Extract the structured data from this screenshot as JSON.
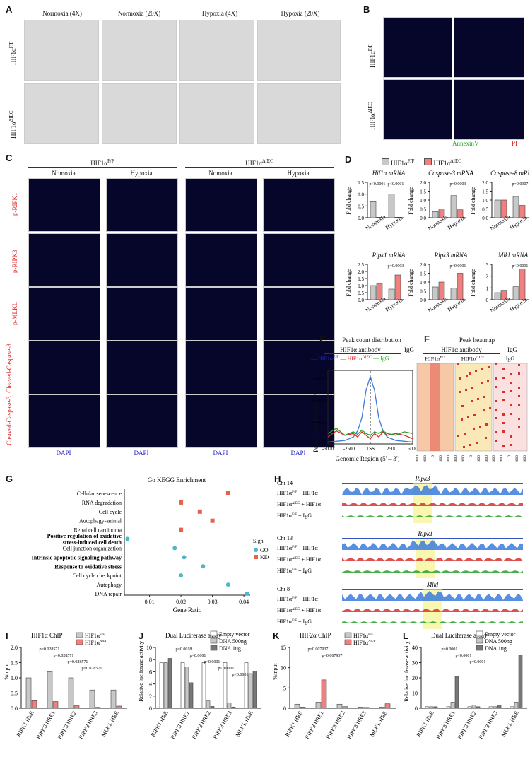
{
  "panels": {
    "A": {
      "label": "A",
      "col_titles": [
        "Normoxia (4X)",
        "Normoxia (20X)",
        "Hypoxia (4X)",
        "Hypoxia (20X)"
      ],
      "row_labels": [
        "HIF1α",
        "HIF1α"
      ],
      "row_sup": [
        "F/F",
        "ΔIEC"
      ]
    },
    "B": {
      "label": "B",
      "row_labels": [
        "HIF1α",
        "HIF1α"
      ],
      "row_sup": [
        "F/F",
        "ΔIEC"
      ],
      "stain_green": "AnnexinV",
      "stain_red": "PI"
    },
    "C": {
      "label": "C",
      "group_titles": [
        "HIF1α",
        "HIF1α"
      ],
      "group_sup": [
        "F/F",
        "ΔIEC"
      ],
      "col_titles": [
        "Nomoxia",
        "Hypoxia",
        "Nomoxia",
        "Hypoxia"
      ],
      "row_labels": [
        "p-RIPK1",
        "p-RIPK3",
        "p-MLKL",
        "Cleaved-Caspase-8",
        "Cleaved-Caspase-3"
      ],
      "footer": "DAPI"
    },
    "D": {
      "label": "D",
      "legend": [
        "HIF1α",
        "HIF1α"
      ],
      "legend_sup": [
        "F/F",
        "ΔIEC"
      ],
      "ylabel": "Fold change",
      "xcats": [
        "Normoxia",
        "Hypoxia"
      ]
    },
    "E": {
      "label": "E",
      "title": "Peak count distribution",
      "sub1": "HIF1α antibody",
      "sub2": "IgG",
      "ylabel": "Peak Count Frequency",
      "xlabel": "Genomic Region (5'→3')",
      "xticks": [
        "-5000",
        "-2500",
        "TSS",
        "2500",
        "5000"
      ],
      "yticks": [
        "0",
        "0.00025",
        "0.00050",
        "0.00075"
      ]
    },
    "F": {
      "label": "F",
      "title": "Peak heatmap",
      "sub1": "HIF1α antibody",
      "sub2": "IgG",
      "col_titles": [
        "HIF1α",
        "HIF1α",
        "IgG"
      ],
      "col_sup": [
        "F/F",
        "ΔIEC",
        ""
      ],
      "xticks": [
        "-4000",
        "-2000",
        "0",
        "2000",
        "4000"
      ]
    },
    "G": {
      "label": "G",
      "title": "Go KEGG Enrichment",
      "xlabel": "Gene Ratio",
      "xticks": [
        "0.01",
        "0.02",
        "0.03",
        "0.04"
      ],
      "legend_title": "Sign",
      "legend_items": [
        "GO",
        "KEGG"
      ]
    },
    "H": {
      "label": "H",
      "chr": [
        "Chr 14",
        "Chr 13",
        "Chr 8"
      ],
      "genes": [
        "Ripk3",
        "Ripk1",
        "Mlkl"
      ],
      "tracks": [
        [
          "HIF1α",
          "+ HIF1α"
        ],
        [
          "HIF1α",
          "+ HIF1α"
        ],
        [
          "HIF1α",
          "+ IgG"
        ]
      ],
      "track_sup": [
        "F/F",
        "ΔIEC",
        "F/F"
      ]
    },
    "I": {
      "label": "I",
      "title": "HIF1α  ChIP",
      "ylabel": "%input",
      "legend": [
        "HIF1α",
        "HIF1α"
      ],
      "legend_sup": [
        "F/F",
        "ΔIEC"
      ],
      "categories": [
        "RIPK1 HRE",
        "RIPK3 HRE1",
        "RIPK3 HRE2",
        "RIPK3 HRE3",
        "MLKL HRE"
      ],
      "pvals": [
        "p=0.028571",
        "p=0.028571",
        "p=0.028571",
        "p=0.028571"
      ]
    },
    "J": {
      "label": "J",
      "title": "Dual Luciferase assay",
      "ylabel": "Relative luciferase activity",
      "legend": [
        "Empty vector",
        "DNA 500ng",
        "DNA 1ug"
      ],
      "categories": [
        "RIPK1 HRE",
        "RIPK3 HRE1",
        "RIPK3 HRE2",
        "RIPK3 HRE3",
        "MLKL HRE"
      ],
      "pvals": [
        "p=0.0018",
        "p<0.0001",
        "p<0.0001",
        "p<0.0001",
        "p<0.0001"
      ]
    },
    "K": {
      "label": "K",
      "title": "HIF2α  ChIP",
      "ylabel": "%input",
      "legend": [
        "HIF1α",
        "HIF1α"
      ],
      "legend_sup": [
        "F/F",
        "ΔIEC"
      ],
      "categories": [
        "RIPK1 HRE",
        "RIPK3 HRE1",
        "RIPK3 HRE2",
        "RIPK3 HRE3",
        "MLKL HRE"
      ],
      "pvals": [
        "p=0.007937",
        "p=0.007937"
      ]
    },
    "L": {
      "label": "L",
      "title": "Dual Luciferase assay",
      "ylabel": "Relative luciferase activity",
      "legend": [
        "Empty vector",
        "DNA 500ng",
        "DNA 1ug"
      ],
      "categories": [
        "RIPK1 HRE",
        "RIPK3 HRE1",
        "RIPK3 HRE2",
        "RIPK3 HRE3",
        "MLKL HRE"
      ],
      "pvals": [
        "p=0.0001",
        "p<0.0001",
        "p=0.0001"
      ]
    }
  },
  "colors": {
    "ff": "#c8c8c8",
    "dIEC": "#f08080",
    "go": "#4db8c8",
    "kegg": "#e8604c",
    "blue": "#3b7bdc",
    "red": "#d83030",
    "green": "#2aa02a"
  },
  "chart_data": [
    {
      "type": "bar",
      "panel": "D",
      "title": "Hif1α mRNA",
      "categories": [
        "Normoxia",
        "Hypoxia"
      ],
      "series": [
        {
          "name": "HIF1αF/F",
          "values": [
            0.68,
            1.0
          ]
        },
        {
          "name": "HIF1αΔIEC",
          "values": [
            0.02,
            0.02
          ]
        }
      ],
      "yticks": [
        "0.0",
        "0.5",
        "1.0",
        "1.5"
      ],
      "ylim": [
        0,
        1.5
      ],
      "pvals": [
        "p<0.0001",
        "p<0.0001"
      ]
    },
    {
      "type": "bar",
      "panel": "D",
      "title": "Caspase-3 mRNA",
      "categories": [
        "Normoxia",
        "Hypoxia"
      ],
      "series": [
        {
          "name": "HIF1αF/F",
          "values": [
            0.35,
            1.25
          ]
        },
        {
          "name": "HIF1αΔIEC",
          "values": [
            0.5,
            0.45
          ]
        }
      ],
      "yticks": [
        "0.0",
        "0.5",
        "1.0",
        "1.5",
        "2.0"
      ],
      "ylim": [
        0,
        2.0
      ],
      "pvals": [
        "p=0.0003"
      ]
    },
    {
      "type": "bar",
      "panel": "D",
      "title": "Caspase-8 mRNA",
      "categories": [
        "Normoxia",
        "Hypoxia"
      ],
      "series": [
        {
          "name": "HIF1αF/F",
          "values": [
            1.0,
            1.2
          ]
        },
        {
          "name": "HIF1αΔIEC",
          "values": [
            1.0,
            0.7
          ]
        }
      ],
      "yticks": [
        "0.0",
        "0.5",
        "1.0",
        "1.5",
        "2.0"
      ],
      "ylim": [
        0,
        2.0
      ],
      "pvals": [
        "p=0.0307"
      ]
    },
    {
      "type": "bar",
      "panel": "D",
      "title": "Ripk1 mRNA",
      "categories": [
        "Normoxia",
        "Hypoxia"
      ],
      "series": [
        {
          "name": "HIF1αF/F",
          "values": [
            1.0,
            0.75
          ]
        },
        {
          "name": "HIF1αΔIEC",
          "values": [
            1.15,
            1.75
          ]
        }
      ],
      "yticks": [
        "0.0",
        "0.5",
        "1.0",
        "1.5",
        "2.0",
        "2.5"
      ],
      "ylim": [
        0,
        2.5
      ],
      "pvals": [
        "p=0.0003"
      ]
    },
    {
      "type": "bar",
      "panel": "D",
      "title": "Ripk3 mRNA",
      "categories": [
        "Normoxia",
        "Hypoxia"
      ],
      "series": [
        {
          "name": "HIF1αF/F",
          "values": [
            0.72,
            0.65
          ]
        },
        {
          "name": "HIF1αΔIEC",
          "values": [
            1.0,
            1.5
          ]
        }
      ],
      "yticks": [
        "0.0",
        "0.5",
        "1.0",
        "1.5",
        "2.0"
      ],
      "ylim": [
        0,
        2.0
      ],
      "pvals": [
        "p<0.0001"
      ]
    },
    {
      "type": "bar",
      "panel": "D",
      "title": "Mlkl mRNA",
      "categories": [
        "Normoxia",
        "Hypoxia"
      ],
      "series": [
        {
          "name": "HIF1αF/F",
          "values": [
            0.6,
            1.1
          ]
        },
        {
          "name": "HIF1αΔIEC",
          "values": [
            0.8,
            2.6
          ]
        }
      ],
      "yticks": [
        "0",
        "1",
        "2",
        "3"
      ],
      "ylim": [
        0,
        3
      ],
      "pvals": [
        "p<0.0001"
      ]
    },
    {
      "type": "line",
      "panel": "E",
      "x": [
        -5000,
        -4000,
        -3000,
        -2000,
        -1500,
        -1000,
        -500,
        0,
        500,
        1000,
        1500,
        2000,
        3000,
        4000,
        5000
      ],
      "series": [
        {
          "name": "HIF1αF/F",
          "values": [
            2e-05,
            3e-05,
            4e-05,
            8e-05,
            0.00015,
            0.0003,
            0.00062,
            0.00078,
            0.00062,
            0.0003,
            0.00015,
            8e-05,
            4e-05,
            3e-05,
            2e-05
          ]
        },
        {
          "name": "HIF1αΔIEC",
          "values": [
            8e-05,
            0.00015,
            0.0001,
            0.00012,
            8e-05,
            0.00014,
            0.0001,
            6e-05,
            0.00012,
            8e-05,
            0.00014,
            0.0001,
            0.00012,
            0.0001,
            6e-05
          ]
        },
        {
          "name": "IgG",
          "values": [
            0.00012,
            0.00018,
            0.0001,
            0.00014,
            0.00011,
            0.00016,
            0.00012,
            0.0001,
            0.00014,
            0.00012,
            0.00015,
            0.00012,
            0.0001,
            0.00014,
            0.00012
          ]
        }
      ],
      "xlim": [
        -5000,
        5000
      ],
      "ylim": [
        0,
        0.00085
      ]
    },
    {
      "type": "scatter",
      "panel": "G",
      "title": "Go KEGG Enrichment",
      "categories": [
        "Cellular senescence",
        "RNA degradation",
        "Cell cycle",
        "Autophagy-animal",
        "Renal cell carcinoma",
        "Positive regulation of oxidative stress-induced cell death",
        "Cell junction organization",
        "Intrinsic apoptotic signaling pathway",
        "Response to oxidative stress",
        "Cell cycle checkpoint",
        "Autophagy",
        "DNA repair"
      ],
      "bold": [
        false,
        false,
        false,
        false,
        false,
        true,
        false,
        true,
        true,
        false,
        false,
        false
      ],
      "x": [
        0.035,
        0.02,
        0.026,
        0.03,
        0.02,
        0.003,
        0.018,
        0.021,
        0.027,
        0.02,
        0.035,
        0.041
      ],
      "sign": [
        "KEGG",
        "KEGG",
        "KEGG",
        "KEGG",
        "KEGG",
        "GO",
        "GO",
        "GO",
        "GO",
        "GO",
        "GO",
        "GO"
      ],
      "xlim": [
        0.002,
        0.042
      ]
    },
    {
      "type": "bar",
      "panel": "I",
      "categories": [
        "RIPK1 HRE",
        "RIPK3 HRE1",
        "RIPK3 HRE2",
        "RIPK3 HRE3",
        "MLKL HRE"
      ],
      "series": [
        {
          "name": "HIF1αF/F",
          "values": [
            1.0,
            1.2,
            1.0,
            0.6,
            0.6
          ]
        },
        {
          "name": "HIF1αΔIEC",
          "values": [
            0.25,
            0.22,
            0.08,
            0.03,
            0.07
          ]
        }
      ],
      "yticks": [
        "0.0",
        "0.5",
        "1.0",
        "1.5",
        "2.0"
      ],
      "ylim": [
        0,
        2.0
      ]
    },
    {
      "type": "bar",
      "panel": "J",
      "categories": [
        "RIPK1 HRE",
        "RIPK3 HRE1",
        "RIPK3 HRE2",
        "RIPK3 HRE3",
        "MLKL HRE"
      ],
      "series": [
        {
          "name": "Empty vector",
          "values": [
            7.5,
            7.5,
            7.5,
            7.5,
            7.5
          ]
        },
        {
          "name": "DNA 500ng",
          "values": [
            7.5,
            6.8,
            1.2,
            0.9,
            5.7
          ]
        },
        {
          "name": "DNA 1ug",
          "values": [
            8.2,
            4.2,
            0.3,
            0.2,
            6.1
          ]
        }
      ],
      "yticks": [
        "0",
        "2",
        "4",
        "6",
        "8",
        "10"
      ],
      "ylim": [
        0,
        10
      ]
    },
    {
      "type": "bar",
      "panel": "K",
      "categories": [
        "RIPK1 HRE",
        "RIPK3 HRE1",
        "RIPK3 HRE2",
        "RIPK3 HRE3",
        "MLKL HRE"
      ],
      "series": [
        {
          "name": "HIF1αF/F",
          "values": [
            1.0,
            1.5,
            1.0,
            0.3,
            0.3
          ]
        },
        {
          "name": "HIF1αΔIEC",
          "values": [
            0.3,
            7.0,
            0.4,
            0.2,
            1.1
          ]
        }
      ],
      "yticks": [
        "0",
        "5",
        "10",
        "15"
      ],
      "ylim": [
        0,
        15
      ]
    },
    {
      "type": "bar",
      "panel": "L",
      "categories": [
        "RIPK1 HRE",
        "RIPK3 HRE1",
        "RIPK3 HRE2",
        "RIPK3 HRE3",
        "MLKL HRE"
      ],
      "series": [
        {
          "name": "Empty vector",
          "values": [
            1.0,
            1.0,
            1.0,
            1.0,
            1.0
          ]
        },
        {
          "name": "DNA 500ng",
          "values": [
            1.0,
            4.0,
            2.0,
            1.0,
            4.0
          ]
        },
        {
          "name": "DNA 1ug",
          "values": [
            1.0,
            21.0,
            1.0,
            2.0,
            35.0
          ]
        }
      ],
      "yticks": [
        "0",
        "10",
        "20",
        "30",
        "40"
      ],
      "ylim": [
        0,
        40
      ]
    }
  ]
}
